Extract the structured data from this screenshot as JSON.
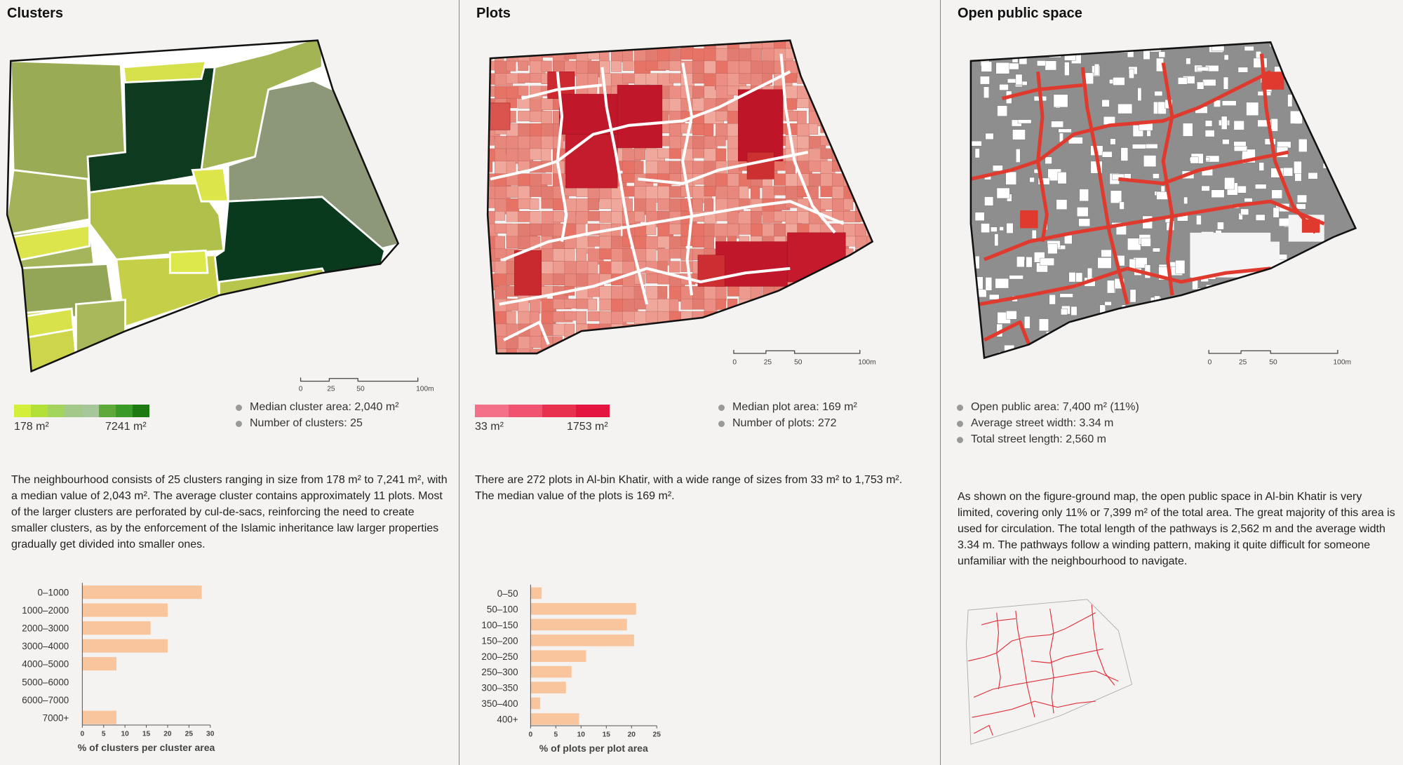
{
  "clusters": {
    "title": "Clusters",
    "legend_min": "178 m²",
    "legend_max": "7241 m²",
    "legend_colors": [
      "#d3ef3a",
      "#b3e036",
      "#a3d45c",
      "#a2c98a",
      "#a5c79a",
      "#5fa83a",
      "#3a9a28",
      "#1d7a12"
    ],
    "stats": [
      "Median cluster area: 2,040 m²",
      "Number of clusters: 25"
    ],
    "paragraph": "The neighbourhood consists of 25 clusters ranging in size from 178 m² to 7,241 m², with a median value of 2,043 m². The average cluster contains approximately 11 plots. Most of the larger clusters are perforated by cul-de-sacs, reinforcing the need to create smaller clusters, as by the enforcement of the Islamic inheritance law larger properties gradually get divided into smaller ones.",
    "scale_labels": [
      "0",
      "25",
      "50",
      "100m"
    ]
  },
  "plots": {
    "title": "Plots",
    "legend_min": "33 m²",
    "legend_max": "1753 m²",
    "legend_colors": [
      "#f47088",
      "#ef5370",
      "#e8304f",
      "#e3153f"
    ],
    "stats": [
      "Median plot area: 169 m²",
      "Number of plots: 272"
    ],
    "paragraph": "There are 272 plots in Al-bin Khatir, with a wide range of sizes from 33 m² to 1,753 m². The median value of the plots is 169 m².",
    "scale_labels": [
      "0",
      "25",
      "50",
      "100m"
    ]
  },
  "open_space": {
    "title": "Open public space",
    "stats": [
      "Open public area: 7,400 m² (11%)",
      "Average street width: 3.34 m",
      "Total street length: 2,560 m"
    ],
    "paragraph": "As shown on the figure-ground map, the open public space in Al-bin Khatir is very limited, covering only 11% or 7,399 m² of the total area. The great majority of this area is used for circulation. The total length of the pathways is 2,562 m and the average width 3.34 m. The pathways follow a winding pattern, making it quite difficult for someone unfamiliar with the neighbourhood to navigate.",
    "scale_labels": [
      "0",
      "25",
      "50",
      "100m"
    ],
    "street_color": "#e03a2e"
  },
  "chart_data": [
    {
      "type": "bar",
      "orientation": "horizontal",
      "title": "",
      "xlabel": "% of clusters per cluster area",
      "ylabel": "",
      "categories": [
        "0–1000",
        "1000–2000",
        "2000–3000",
        "3000–4000",
        "4000–5000",
        "5000–6000",
        "6000–7000",
        "7000+"
      ],
      "values": [
        28,
        20,
        16,
        20,
        8,
        0,
        0,
        8
      ],
      "xlim": [
        0,
        30
      ],
      "xticks": [
        "0",
        "5",
        "10",
        "15",
        "20",
        "25",
        "30"
      ],
      "bar_color": "#f9c59c"
    },
    {
      "type": "bar",
      "orientation": "horizontal",
      "title": "",
      "xlabel": "% of plots per plot area",
      "ylabel": "",
      "categories": [
        "0–50",
        "50–100",
        "100–150",
        "150–200",
        "200–250",
        "250–300",
        "300–350",
        "350–400",
        "400+"
      ],
      "values": [
        2.2,
        20.9,
        19.1,
        20.5,
        11,
        8.1,
        7,
        1.9,
        9.6
      ],
      "xlim": [
        0,
        25
      ],
      "xticks": [
        "0",
        "5",
        "10",
        "15",
        "20",
        "25"
      ],
      "bar_color": "#f9c59c"
    }
  ]
}
